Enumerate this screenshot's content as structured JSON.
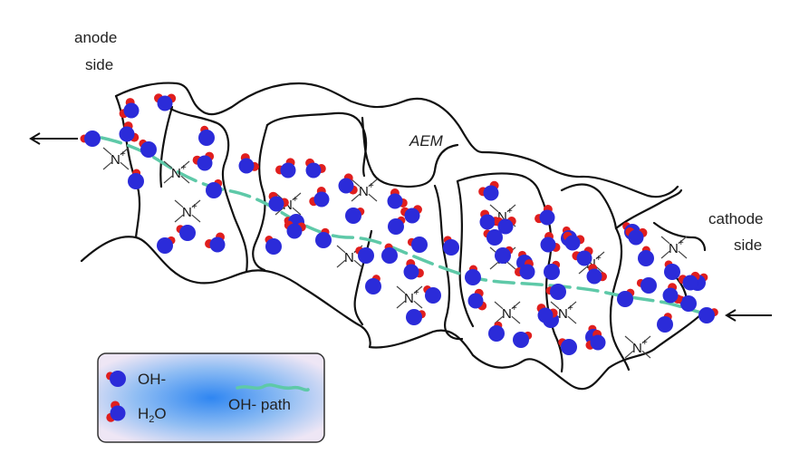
{
  "labels": {
    "anode_line1": "anode",
    "anode_line2": "side",
    "cathode_line1": "cathode",
    "cathode_line2": "side",
    "membrane": "AEM"
  },
  "cation_group": {
    "symbol": "N",
    "charge": "+"
  },
  "legend": {
    "hydroxide": "OH-",
    "water_main": "H",
    "water_sub": "2",
    "water_tail": "O",
    "path_label": "OH-  path"
  },
  "colors": {
    "hydroxide_oxygen": "#2b2bd9",
    "hydrogen": "#e01e1e",
    "path": "#5ec9a8",
    "boundary": "#111111",
    "legend_fill": "#3b8cf0",
    "legend_border": "#333333"
  }
}
